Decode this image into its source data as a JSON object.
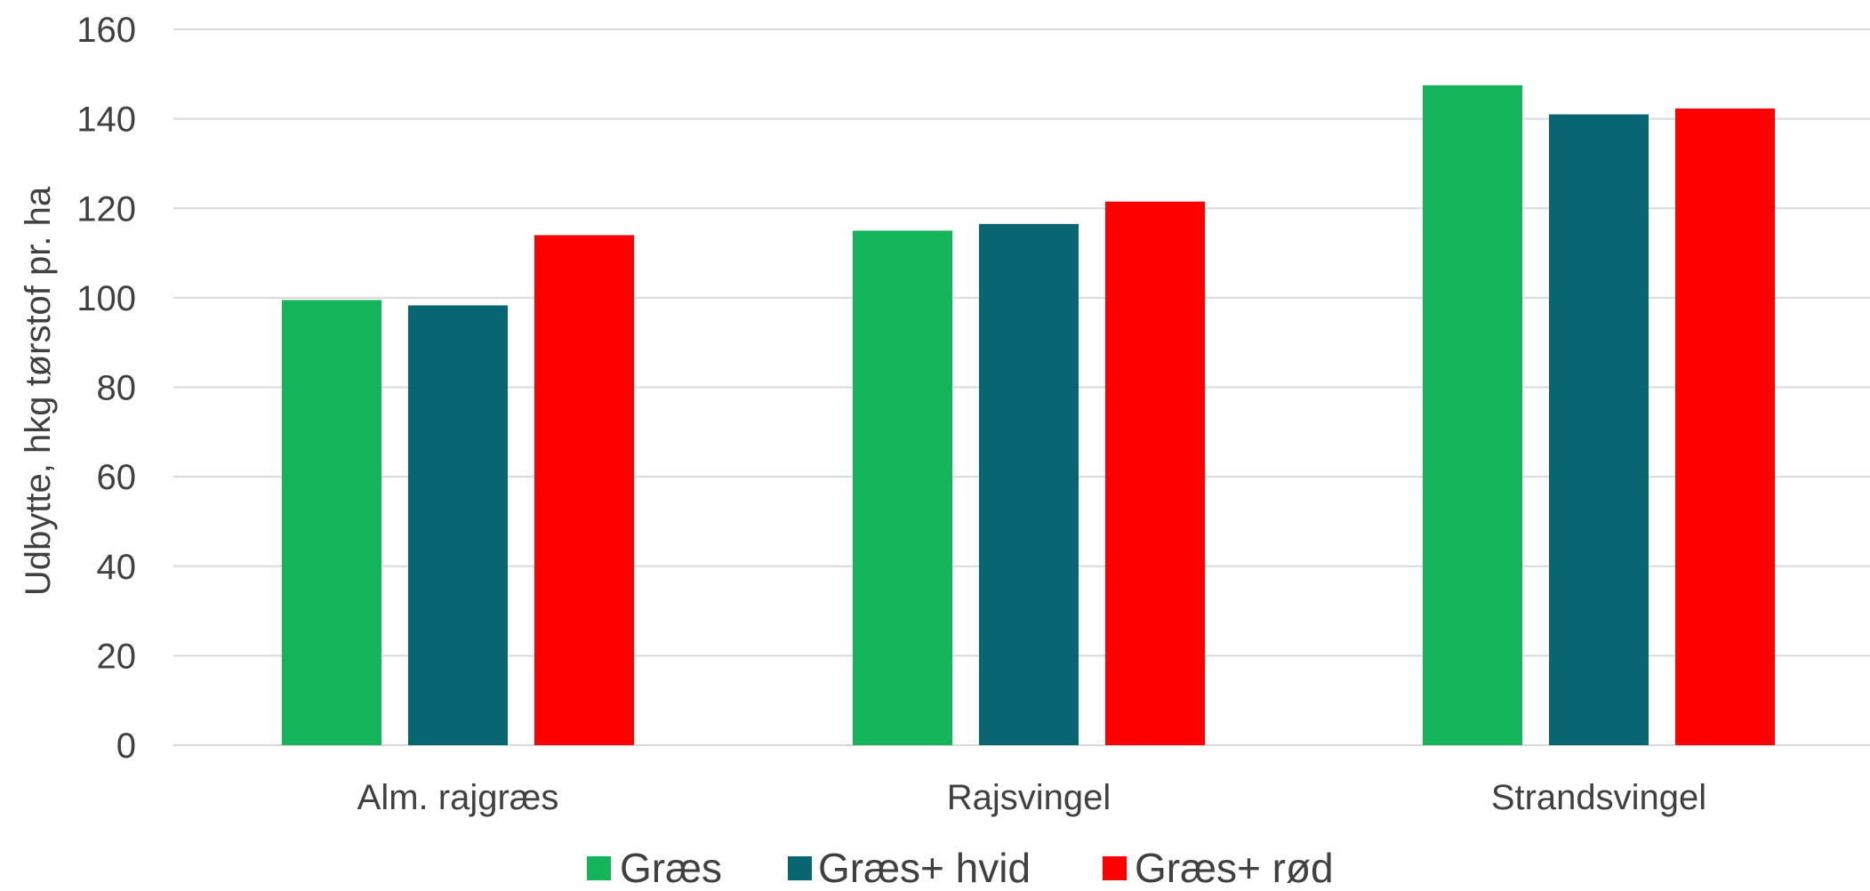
{
  "chart_data": {
    "type": "bar",
    "title": "",
    "xlabel": "",
    "ylabel": "Udbytte, hkg tørstof pr. ha",
    "ylim": [
      0,
      160
    ],
    "yticks": [
      0,
      20,
      40,
      60,
      80,
      100,
      120,
      140,
      160
    ],
    "grid": true,
    "legend_position": "bottom",
    "categories": [
      "Alm. rajgræs",
      "Rajsvingel",
      "Strandsvingel"
    ],
    "series": [
      {
        "name": "Græs",
        "color": "#14B45A",
        "values": [
          99.5,
          115,
          147.5
        ]
      },
      {
        "name": "Græs+ hvid",
        "color": "#086672",
        "values": [
          98.3,
          116.5,
          141
        ]
      },
      {
        "name": "Græs+ rød",
        "color": "#FF0000",
        "values": [
          114,
          121.5,
          142.3
        ]
      }
    ]
  }
}
